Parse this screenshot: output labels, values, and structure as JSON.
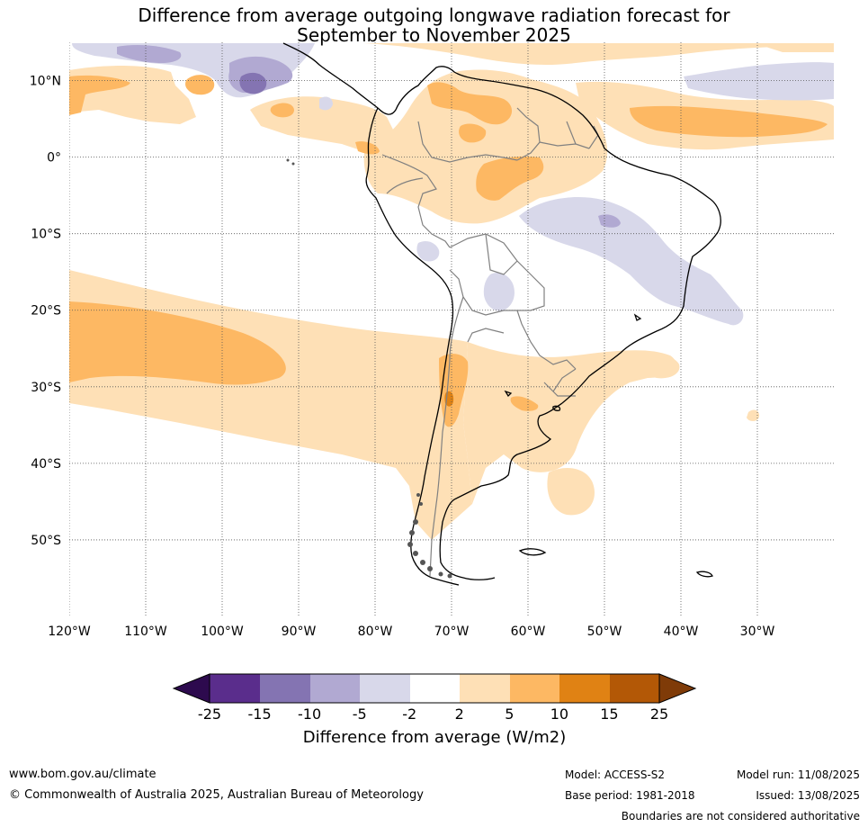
{
  "title": {
    "line1": "Difference from average outgoing longwave radiation forecast for",
    "line2": "September to November 2025"
  },
  "map": {
    "lon_range": [
      -120,
      -20
    ],
    "lat_range": [
      -60,
      15
    ],
    "lat_ticks": [
      {
        "value": 10,
        "label": "10°N"
      },
      {
        "value": 0,
        "label": "0°"
      },
      {
        "value": -10,
        "label": "10°S"
      },
      {
        "value": -20,
        "label": "20°S"
      },
      {
        "value": -30,
        "label": "30°S"
      },
      {
        "value": -40,
        "label": "40°S"
      },
      {
        "value": -50,
        "label": "50°S"
      }
    ],
    "lon_ticks": [
      {
        "value": -120,
        "label": "120°W"
      },
      {
        "value": -110,
        "label": "110°W"
      },
      {
        "value": -100,
        "label": "100°W"
      },
      {
        "value": -90,
        "label": "90°W"
      },
      {
        "value": -80,
        "label": "80°W"
      },
      {
        "value": -70,
        "label": "70°W"
      },
      {
        "value": -60,
        "label": "60°W"
      },
      {
        "value": -50,
        "label": "50°W"
      },
      {
        "value": -40,
        "label": "40°W"
      },
      {
        "value": -30,
        "label": "30°W"
      }
    ],
    "colors": {
      "neg25": "#2d0a4e",
      "neg15": "#5a2d8c",
      "neg10": "#8474b2",
      "neg5": "#b1a9d2",
      "neg2": "#d8d8ea",
      "zero": "#ffffff",
      "pos2": "#fee0b6",
      "pos5": "#fdb863",
      "pos10": "#e08214",
      "pos15": "#b35806",
      "pos25": "#7f3b08",
      "coast": "#000000",
      "border": "#808080"
    }
  },
  "colorbar": {
    "ticks": [
      "-25",
      "-15",
      "-10",
      "-5",
      "-2",
      "2",
      "5",
      "10",
      "15",
      "25"
    ],
    "label": "Difference from average (W/m2)"
  },
  "footer": {
    "url": "www.bom.gov.au/climate",
    "copyright": "© Commonwealth of Australia 2025, Australian Bureau of Meteorology",
    "model": "Model: ACCESS-S2",
    "base_period": "Base period: 1981-2018",
    "model_run": "Model run: 11/08/2025",
    "issued": "Issued: 13/08/2025",
    "disclaimer": "Boundaries are not considered authoritative"
  }
}
